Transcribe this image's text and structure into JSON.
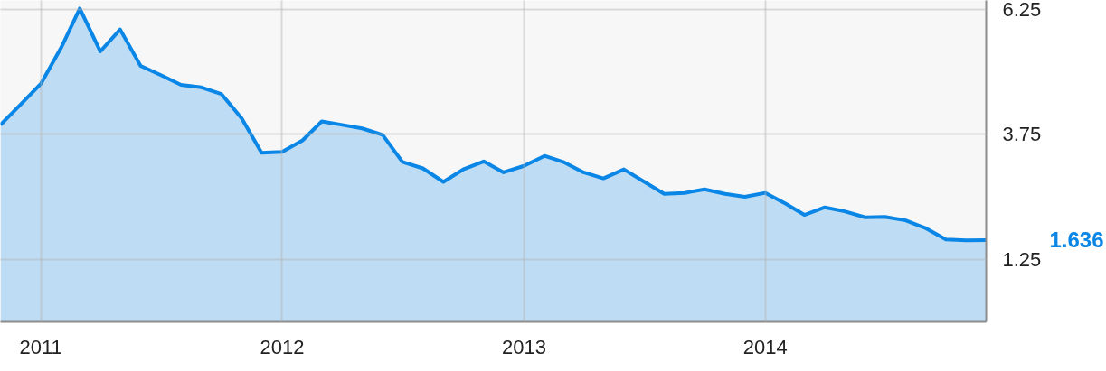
{
  "chart_data": {
    "type": "area",
    "x": [
      "2010-11",
      "2010-12",
      "2011-01",
      "2011-02",
      "2011-03",
      "2011-04",
      "2011-05",
      "2011-06",
      "2011-07",
      "2011-08",
      "2011-09",
      "2011-10",
      "2011-11",
      "2011-12",
      "2012-01",
      "2012-02",
      "2012-03",
      "2012-04",
      "2012-05",
      "2012-06",
      "2012-07",
      "2012-08",
      "2012-09",
      "2012-10",
      "2012-11",
      "2012-12",
      "2013-01",
      "2013-02",
      "2013-03",
      "2013-04",
      "2013-05",
      "2013-06",
      "2013-07",
      "2013-08",
      "2013-09",
      "2013-10",
      "2013-11",
      "2013-12",
      "2014-01",
      "2014-02",
      "2014-03",
      "2014-04",
      "2014-05",
      "2014-06",
      "2014-07",
      "2014-08",
      "2014-09",
      "2014-10",
      "2014-11",
      "2014-12"
    ],
    "series": [
      {
        "color": "#0a86e6",
        "values": [
          3.94,
          4.34,
          4.76,
          5.49,
          6.27,
          5.41,
          5.85,
          5.12,
          4.94,
          4.74,
          4.69,
          4.56,
          4.07,
          3.38,
          3.4,
          3.63,
          4.01,
          3.94,
          3.87,
          3.74,
          3.2,
          3.07,
          2.8,
          3.05,
          3.21,
          2.99,
          3.12,
          3.32,
          3.2,
          2.99,
          2.87,
          3.05,
          2.81,
          2.56,
          2.58,
          2.65,
          2.56,
          2.5,
          2.58,
          2.36,
          2.14,
          2.29,
          2.21,
          2.09,
          2.1,
          2.03,
          1.87,
          1.65,
          1.63,
          1.636
        ]
      }
    ],
    "xlim": [
      "2010-11",
      "2014-12"
    ],
    "xticks": [
      "2011",
      "2012",
      "2013",
      "2014"
    ],
    "ylim": [
      0,
      6.43
    ],
    "yticks": [
      1.25,
      3.75,
      6.25
    ],
    "grid": true,
    "annotations": [
      "1.636"
    ]
  }
}
